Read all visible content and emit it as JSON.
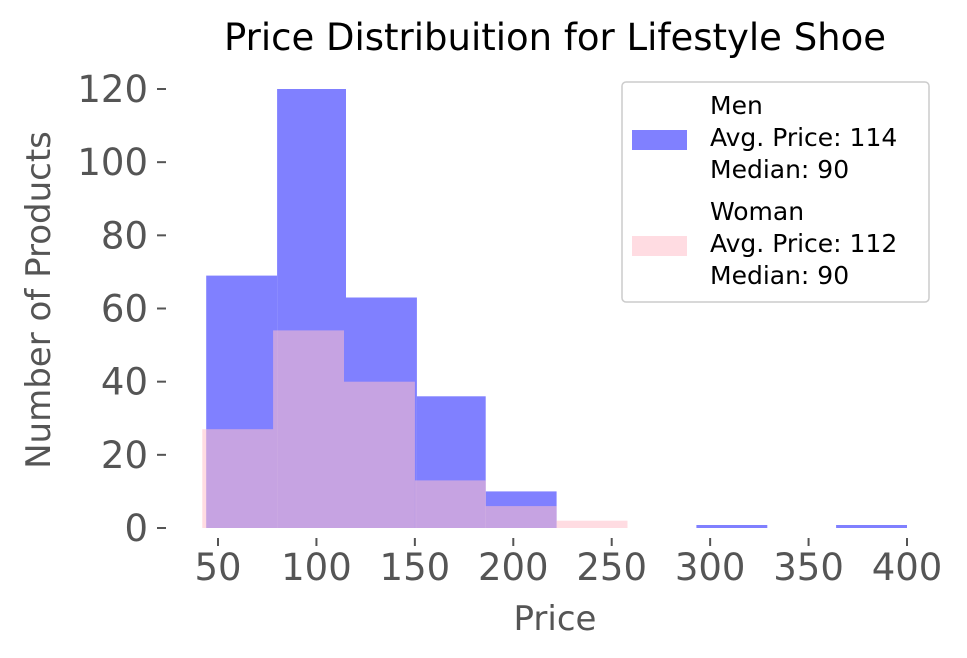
{
  "chart_data": {
    "type": "bar",
    "title": "Price Distribuition for Lifestyle Shoe",
    "xlabel": "Price",
    "ylabel": "Number of Products",
    "xlim": [
      35,
      410
    ],
    "ylim": [
      0,
      125
    ],
    "xticks": [
      50,
      100,
      150,
      200,
      250,
      300,
      350,
      400
    ],
    "yticks": [
      0,
      20,
      40,
      60,
      80,
      100,
      120
    ],
    "grid": false,
    "legend_position": "top-right",
    "series": [
      {
        "name": "Men",
        "legend_lines": [
          "Men",
          "Avg. Price: 114",
          "Median: 90"
        ],
        "color": "#8080ff",
        "bins": [
          {
            "start": 44,
            "end": 80,
            "count": 69
          },
          {
            "start": 80,
            "end": 115,
            "count": 120
          },
          {
            "start": 115,
            "end": 151,
            "count": 63
          },
          {
            "start": 151,
            "end": 186,
            "count": 36
          },
          {
            "start": 186,
            "end": 222,
            "count": 10
          },
          {
            "start": 222,
            "end": 258,
            "count": 0
          },
          {
            "start": 258,
            "end": 293,
            "count": 0
          },
          {
            "start": 293,
            "end": 329,
            "count": 1
          },
          {
            "start": 329,
            "end": 364,
            "count": 0
          },
          {
            "start": 364,
            "end": 400,
            "count": 1
          }
        ]
      },
      {
        "name": "Woman",
        "legend_lines": [
          "Woman",
          "Avg. Price: 112",
          "Median: 90"
        ],
        "color": "#ffc0cb",
        "opacity": 0.55,
        "bins": [
          {
            "start": 42,
            "end": 78,
            "count": 27
          },
          {
            "start": 78,
            "end": 114,
            "count": 54
          },
          {
            "start": 114,
            "end": 150,
            "count": 40
          },
          {
            "start": 150,
            "end": 186,
            "count": 13
          },
          {
            "start": 186,
            "end": 222,
            "count": 6
          },
          {
            "start": 222,
            "end": 258,
            "count": 2
          }
        ]
      }
    ]
  }
}
